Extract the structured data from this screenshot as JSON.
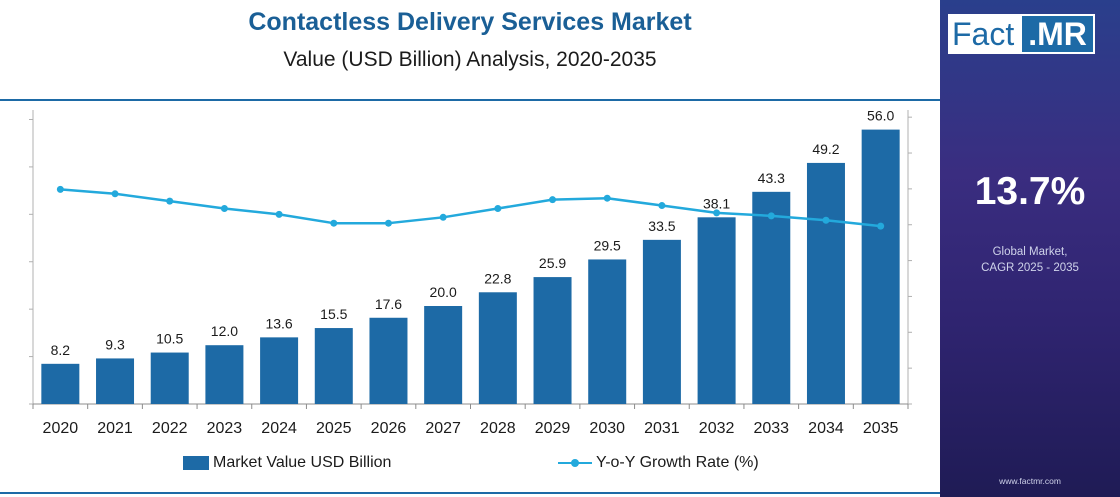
{
  "title": "Contactless Delivery Services Market",
  "subtitle": "Value (USD Billion) Analysis, 2020-2035",
  "sidebar": {
    "logo_fact": "Fact",
    "logo_mr": ".MR",
    "cagr_value": "13.7%",
    "cagr_label_line1": "Global Market,",
    "cagr_label_line2": "CAGR 2025 - 2035",
    "website": "www.factmr.com"
  },
  "legend": {
    "bar_label": "Market Value USD Billion",
    "line_label": "Y-o-Y Growth Rate (%)"
  },
  "colors": {
    "bar": "#1d6aa6",
    "line": "#23a9dc",
    "title": "#1a5f96",
    "sidebar": "#2f2470"
  },
  "chart_data": {
    "type": "bar",
    "title": "Contactless Delivery Services Market",
    "subtitle": "Value (USD Billion) Analysis, 2020-2035",
    "categories": [
      "2020",
      "2021",
      "2022",
      "2023",
      "2024",
      "2025",
      "2026",
      "2027",
      "2028",
      "2029",
      "2030",
      "2031",
      "2032",
      "2033",
      "2034",
      "2035"
    ],
    "series": [
      {
        "name": "Market Value USD Billion",
        "type": "bar",
        "values": [
          8.2,
          9.3,
          10.5,
          12.0,
          13.6,
          15.5,
          17.6,
          20.0,
          22.8,
          25.9,
          29.5,
          33.5,
          38.1,
          43.3,
          49.2,
          56.0
        ],
        "labels": [
          "8.2",
          "9.3",
          "10.5",
          "12.0",
          "13.6",
          "15.5",
          "17.6",
          "20.0",
          "22.8",
          "25.9",
          "29.5",
          "33.5",
          "38.1",
          "43.3",
          "49.2",
          "56.0"
        ]
      },
      {
        "name": "Y-o-Y Growth Rate (%)",
        "type": "line",
        "values": [
          14.6,
          14.3,
          13.8,
          13.3,
          12.9,
          12.3,
          12.3,
          12.7,
          13.3,
          13.9,
          14.0,
          13.5,
          13.0,
          12.8,
          12.5,
          12.1
        ]
      }
    ],
    "ylim": [
      0,
      60
    ],
    "y2lim": [
      0,
      20
    ],
    "grid": false,
    "legend_position": "bottom"
  }
}
